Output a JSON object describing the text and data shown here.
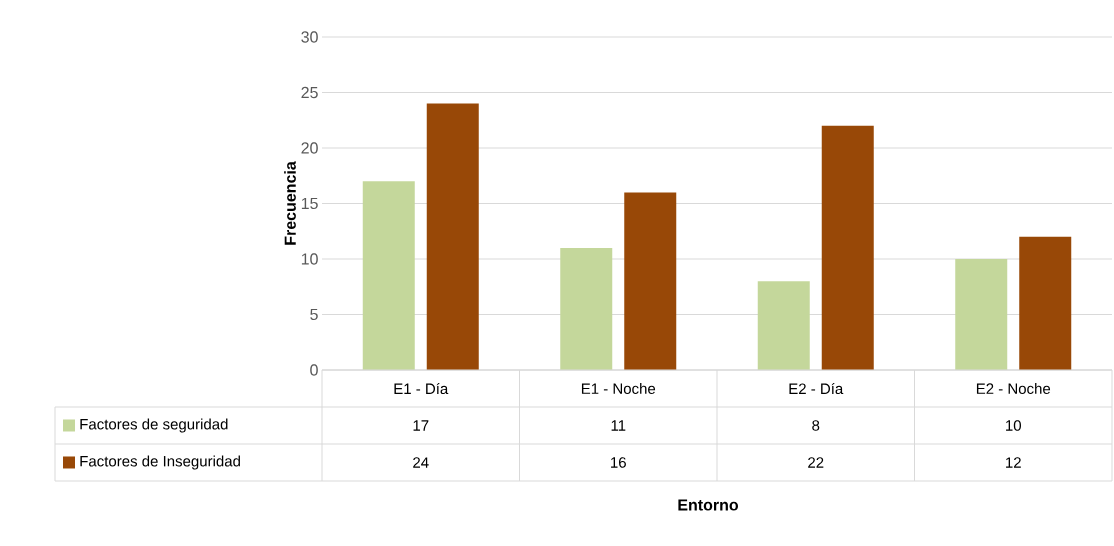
{
  "chart_data": {
    "type": "bar",
    "annotations": [
      "Entorno"
    ],
    "ylabel": "Frecuencia",
    "categories": [
      "E1 - Día",
      "E1 - Noche",
      "E2 - Día",
      "E2 - Noche"
    ],
    "series": [
      {
        "name": "Factores de seguridad",
        "color": "#c4d79b",
        "values": [
          17,
          11,
          8,
          10
        ]
      },
      {
        "name": "Factores de Inseguridad",
        "color": "#984807",
        "values": [
          24,
          16,
          22,
          12
        ]
      }
    ],
    "ylim": [
      0,
      30
    ],
    "yticks": [
      0,
      5,
      10,
      15,
      20,
      25,
      30
    ],
    "grid": "y",
    "legend": "left",
    "data_labels": true
  }
}
